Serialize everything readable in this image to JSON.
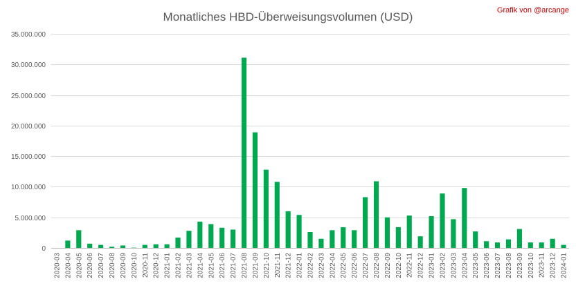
{
  "chart_data": {
    "type": "bar",
    "title": "Monatliches HBD-Überweisungsvolumen (USD)",
    "credit": "Grafik von @arcange",
    "xlabel": "",
    "ylabel": "",
    "ylim": [
      0,
      35000000
    ],
    "y_ticks": [
      0,
      5000000,
      10000000,
      15000000,
      20000000,
      25000000,
      30000000,
      35000000
    ],
    "y_tick_labels": [
      "0",
      "5.000.000",
      "10.000.000",
      "15.000.000",
      "20.000.000",
      "25.000.000",
      "30.000.000",
      "35.000.000"
    ],
    "grid": true,
    "legend": "none",
    "bar_color": "#00a84f",
    "categories": [
      "2020-03",
      "2020-04",
      "2020-05",
      "2020-06",
      "2020-07",
      "2020-08",
      "2020-09",
      "2020-10",
      "2020-11",
      "2020-12",
      "2021-01",
      "2021-02",
      "2021-03",
      "2021-04",
      "2021-05",
      "2021-06",
      "2021-07",
      "2021-08",
      "2021-09",
      "2021-10",
      "2021-11",
      "2021-12",
      "2022-01",
      "2022-02",
      "2022-03",
      "2022-04",
      "2022-05",
      "2022-06",
      "2022-07",
      "2022-08",
      "2022-09",
      "2022-10",
      "2022-11",
      "2022-12",
      "2023-01",
      "2023-02",
      "2023-03",
      "2023-04",
      "2023-05",
      "2023-06",
      "2023-07",
      "2023-08",
      "2023-09",
      "2023-10",
      "2023-11",
      "2023-12",
      "2024-01"
    ],
    "values": [
      0,
      1200000,
      2900000,
      700000,
      500000,
      200000,
      400000,
      50000,
      500000,
      600000,
      600000,
      1700000,
      2800000,
      4300000,
      3900000,
      3300000,
      3000000,
      31100000,
      18900000,
      12800000,
      10800000,
      6000000,
      5400000,
      2600000,
      1500000,
      2900000,
      3400000,
      2900000,
      8300000,
      10900000,
      5000000,
      3400000,
      5300000,
      1900000,
      5200000,
      8900000,
      4700000,
      9800000,
      2700000,
      1100000,
      900000,
      1400000,
      3100000,
      900000,
      900000,
      1500000,
      500000
    ]
  }
}
